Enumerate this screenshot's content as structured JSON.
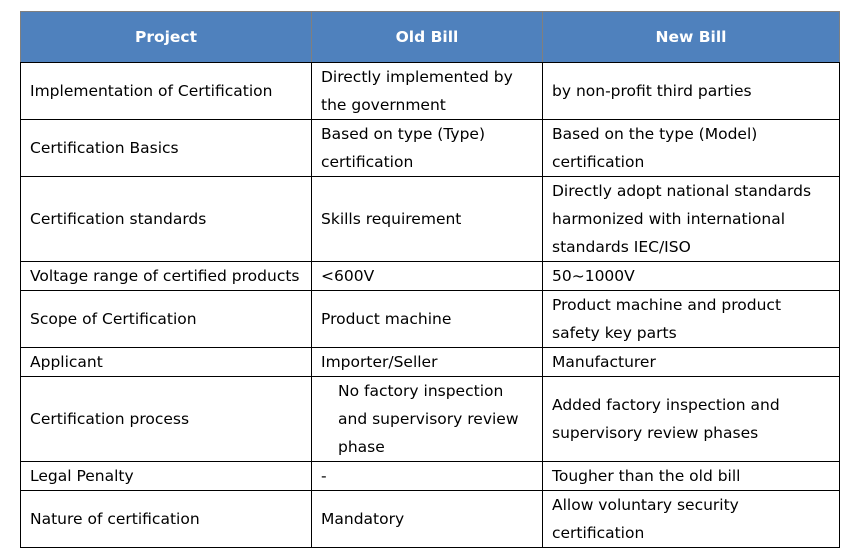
{
  "table": {
    "headers": [
      "Project",
      "Old Bill",
      "New Bill"
    ],
    "rows": [
      [
        "Implementation of Certification",
        "Directly implemented by the government",
        "by non-profit third parties"
      ],
      [
        "Certification Basics",
        "Based on type (Type) certification",
        "Based on the type (Model) certification"
      ],
      [
        "Certification standards",
        "Skills requirement",
        "Directly adopt national standards harmonized with international standards IEC/ISO"
      ],
      [
        "Voltage range of certified products",
        "<600V",
        "50~1000V"
      ],
      [
        "Scope of Certification",
        "Product machine",
        "Product machine and product safety key parts"
      ],
      [
        "Applicant",
        "Importer/Seller",
        "Manufacturer"
      ],
      [
        "Certification process",
        "No factory inspection and supervisory review phase",
        "Added factory inspection and supervisory review phases"
      ],
      [
        "Legal Penalty",
        "-",
        "Tougher than the old bill"
      ],
      [
        "Nature of certification",
        "Mandatory",
        "Allow voluntary security certification"
      ]
    ]
  }
}
